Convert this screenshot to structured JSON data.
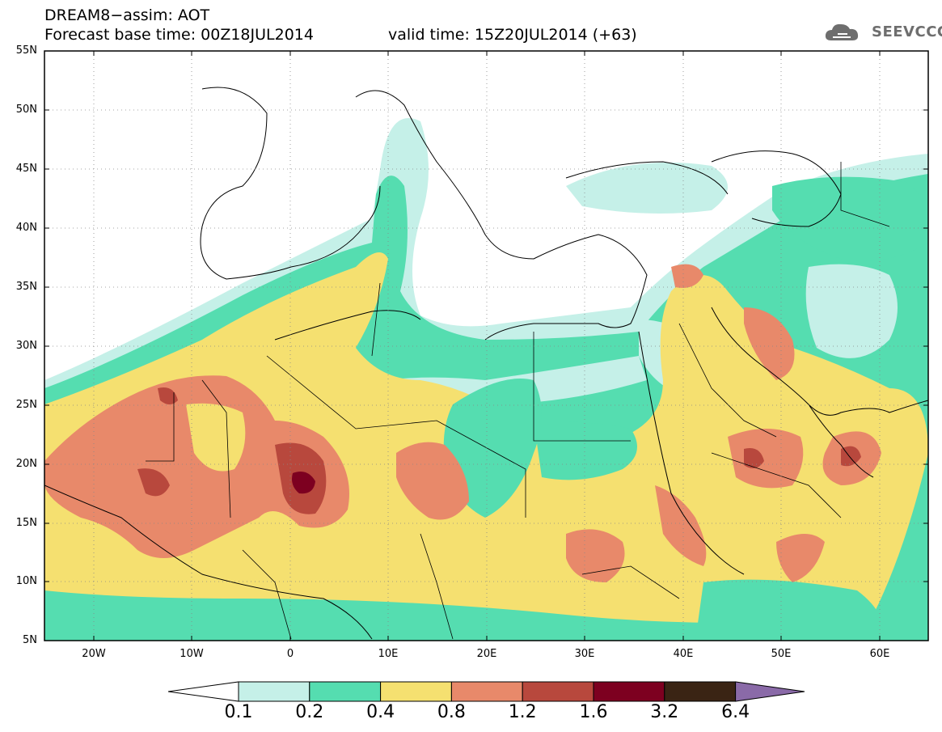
{
  "title_line1": "DREAM8−assim: AOT",
  "title_line2": "Forecast base time: 00Z18JUL2014",
  "valid_time": "valid time: 15Z20JUL2014 (+63)",
  "logo": {
    "name": "cloud-logo-icon",
    "text": "SEEVCCC",
    "color": "#6e6e6e"
  },
  "lat_labels": [
    "55N",
    "50N",
    "45N",
    "40N",
    "35N",
    "30N",
    "25N",
    "20N",
    "15N",
    "10N",
    "5N"
  ],
  "lon_labels": [
    "20W",
    "10W",
    "0",
    "10E",
    "20E",
    "30E",
    "40E",
    "50E",
    "60E"
  ],
  "colorbar": {
    "labels": [
      "0.1",
      "0.2",
      "0.4",
      "0.8",
      "1.2",
      "1.6",
      "3.2",
      "6.4"
    ],
    "colors": [
      "#ffffff",
      "#c5f0e8",
      "#55ddb0",
      "#f5e070",
      "#e8896a",
      "#b8483d",
      "#7d0020",
      "#3a2414",
      "#8a6aa8"
    ]
  }
}
